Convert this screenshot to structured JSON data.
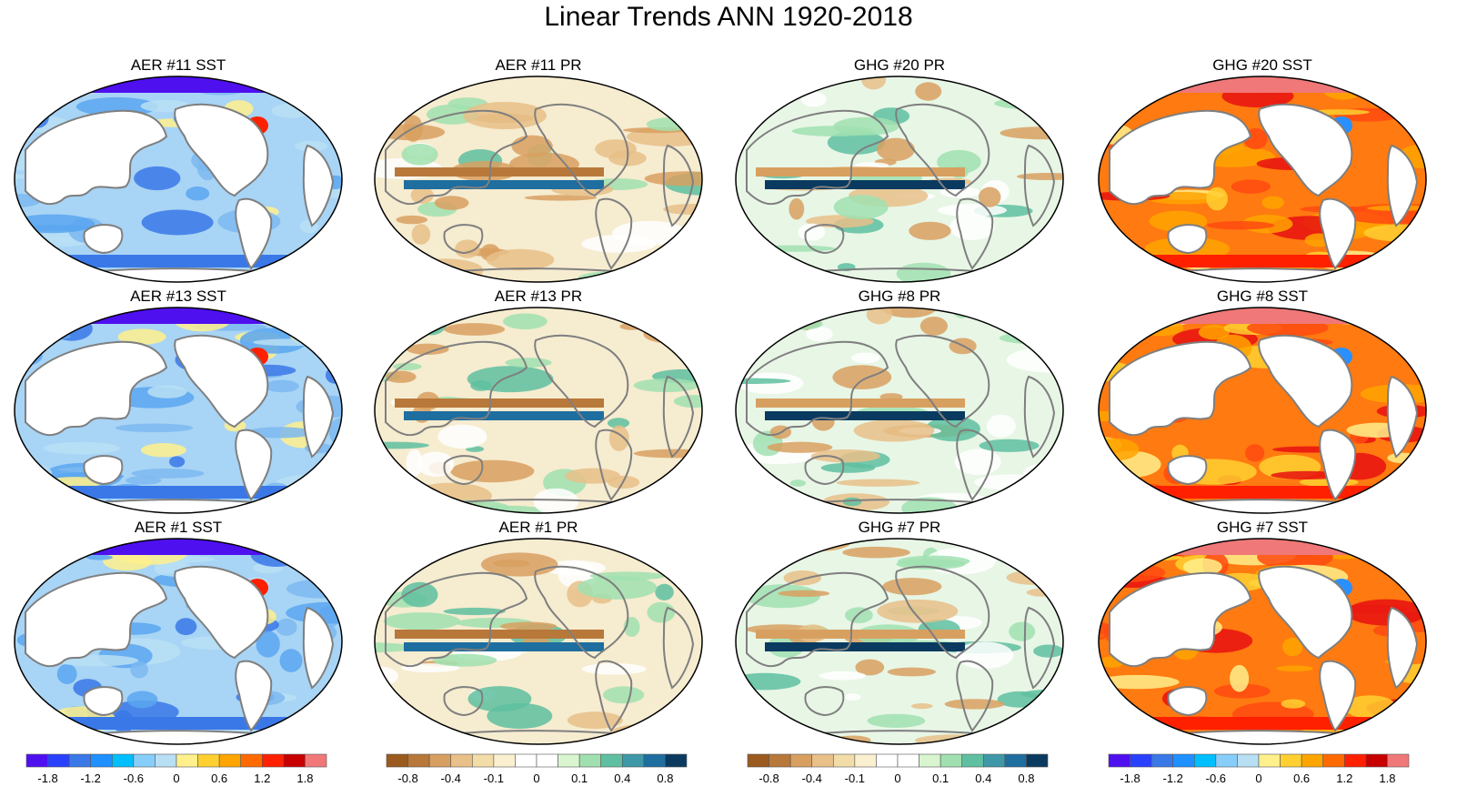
{
  "figure": {
    "title": "Linear Trends ANN 1920-2018"
  },
  "panels": [
    {
      "title": "AER #11 SST",
      "variable": "sst",
      "scenario": "AER"
    },
    {
      "title": "AER #11 PR",
      "variable": "pr",
      "scenario": "AER"
    },
    {
      "title": "GHG #20 PR",
      "variable": "pr",
      "scenario": "GHG"
    },
    {
      "title": "GHG #20 SST",
      "variable": "sst",
      "scenario": "GHG"
    },
    {
      "title": "AER #13 SST",
      "variable": "sst",
      "scenario": "AER"
    },
    {
      "title": "AER #13 PR",
      "variable": "pr",
      "scenario": "AER"
    },
    {
      "title": "GHG #8 PR",
      "variable": "pr",
      "scenario": "GHG"
    },
    {
      "title": "GHG #8 SST",
      "variable": "sst",
      "scenario": "GHG"
    },
    {
      "title": "AER #1 SST",
      "variable": "sst",
      "scenario": "AER"
    },
    {
      "title": "AER #1 PR",
      "variable": "pr",
      "scenario": "AER"
    },
    {
      "title": "GHG #7 PR",
      "variable": "pr",
      "scenario": "GHG"
    },
    {
      "title": "GHG #7 SST",
      "variable": "sst",
      "scenario": "GHG"
    }
  ],
  "colorbars": [
    {
      "name": "sst-colorbar-aer",
      "colors": [
        "#4f10f0",
        "#2a40ff",
        "#3a78e8",
        "#1e90ff",
        "#00bfff",
        "#87cefa",
        "#b9dff5",
        "#fff08c",
        "#ffd030",
        "#ffa500",
        "#ff6a00",
        "#ff2000",
        "#c80000",
        "#f07878"
      ],
      "labels": [
        "-1.8",
        "-1.2",
        "-0.6",
        "0",
        "0.6",
        "1.2",
        "1.8"
      ]
    },
    {
      "name": "pr-colorbar-aer",
      "colors": [
        "#9b5a1e",
        "#b8783a",
        "#d8a060",
        "#e8c088",
        "#f2dca8",
        "#faf0d0",
        "#ffffff",
        "#ffffff",
        "#d8f5d0",
        "#a0e0b0",
        "#5ec0a0",
        "#3e98a8",
        "#1e6ea0",
        "#0a3a60"
      ],
      "labels": [
        "-0.8",
        "-0.4",
        "-0.1",
        "0",
        "0.1",
        "0.4",
        "0.8"
      ]
    },
    {
      "name": "pr-colorbar-ghg",
      "colors": [
        "#9b5a1e",
        "#b8783a",
        "#d8a060",
        "#e8c088",
        "#f2dca8",
        "#faf0d0",
        "#ffffff",
        "#ffffff",
        "#d8f5d0",
        "#a0e0b0",
        "#5ec0a0",
        "#3e98a8",
        "#1e6ea0",
        "#0a3a60"
      ],
      "labels": [
        "-0.8",
        "-0.4",
        "-0.1",
        "0",
        "0.1",
        "0.4",
        "0.8"
      ]
    },
    {
      "name": "sst-colorbar-ghg",
      "colors": [
        "#4f10f0",
        "#2a40ff",
        "#3a78e8",
        "#1e90ff",
        "#00bfff",
        "#87cefa",
        "#b9dff5",
        "#fff08c",
        "#ffd030",
        "#ffa500",
        "#ff6a00",
        "#ff2000",
        "#c80000",
        "#f07878"
      ],
      "labels": [
        "-1.8",
        "-1.2",
        "-0.6",
        "0",
        "0.6",
        "1.2",
        "1.8"
      ]
    }
  ]
}
